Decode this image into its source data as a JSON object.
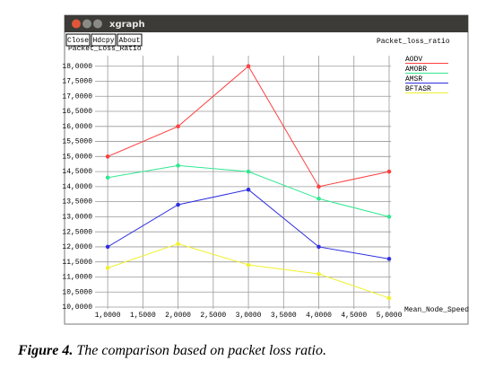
{
  "window": {
    "title": "xgraph",
    "buttons": [
      "Close",
      "Hdcpy",
      "About"
    ]
  },
  "chart_data": {
    "type": "line",
    "title": "Packet_loss_ratio",
    "y_label": "Packet_Loss_Ratio",
    "x_label": "Mean_Node_Speed",
    "x": [
      1,
      2,
      3,
      4,
      5
    ],
    "xlim": [
      0.82,
      5.0
    ],
    "xticks": [
      {
        "value": 1,
        "label": "1,0000"
      },
      {
        "value": 1.5,
        "label": "1,5000"
      },
      {
        "value": 2,
        "label": "2,0000"
      },
      {
        "value": 2.5,
        "label": "2,5000"
      },
      {
        "value": 3,
        "label": "3,0000"
      },
      {
        "value": 3.5,
        "label": "3,5000"
      },
      {
        "value": 4,
        "label": "4,0000"
      },
      {
        "value": 4.5,
        "label": "4,5000"
      },
      {
        "value": 5,
        "label": "5,0000"
      }
    ],
    "ylim": [
      10,
      18.35
    ],
    "yticks": [
      {
        "value": 10,
        "label": "10,0000"
      },
      {
        "value": 10.5,
        "label": "10,5000"
      },
      {
        "value": 11,
        "label": "11,0000"
      },
      {
        "value": 11.5,
        "label": "11,5000"
      },
      {
        "value": 12,
        "label": "12,0000"
      },
      {
        "value": 12.5,
        "label": "12,5000"
      },
      {
        "value": 13,
        "label": "13,0000"
      },
      {
        "value": 13.5,
        "label": "13,5000"
      },
      {
        "value": 14,
        "label": "14,0000"
      },
      {
        "value": 14.5,
        "label": "14,5000"
      },
      {
        "value": 15,
        "label": "15,0000"
      },
      {
        "value": 15.5,
        "label": "15,5000"
      },
      {
        "value": 16,
        "label": "16,0000"
      },
      {
        "value": 16.5,
        "label": "16,5000"
      },
      {
        "value": 17,
        "label": "17,0000"
      },
      {
        "value": 17.5,
        "label": "17,5000"
      },
      {
        "value": 18,
        "label": "18,0000"
      }
    ],
    "grid": true,
    "legend": "top-right",
    "series": [
      {
        "name": "AODV",
        "color": "#ff4040",
        "values": [
          15.0,
          16.0,
          18.0,
          14.0,
          14.5
        ]
      },
      {
        "name": "AMOBR",
        "color": "#30e890",
        "values": [
          14.3,
          14.7,
          14.5,
          13.6,
          13.0
        ]
      },
      {
        "name": "AMSR",
        "color": "#3030e0",
        "values": [
          12.0,
          13.4,
          13.9,
          12.0,
          11.6
        ]
      },
      {
        "name": "BFTASR",
        "color": "#f0f030",
        "values": [
          11.3,
          12.1,
          11.4,
          11.1,
          10.3
        ]
      }
    ]
  },
  "caption": {
    "label": "Figure 4.",
    "text": "The comparison based on packet loss ratio."
  }
}
